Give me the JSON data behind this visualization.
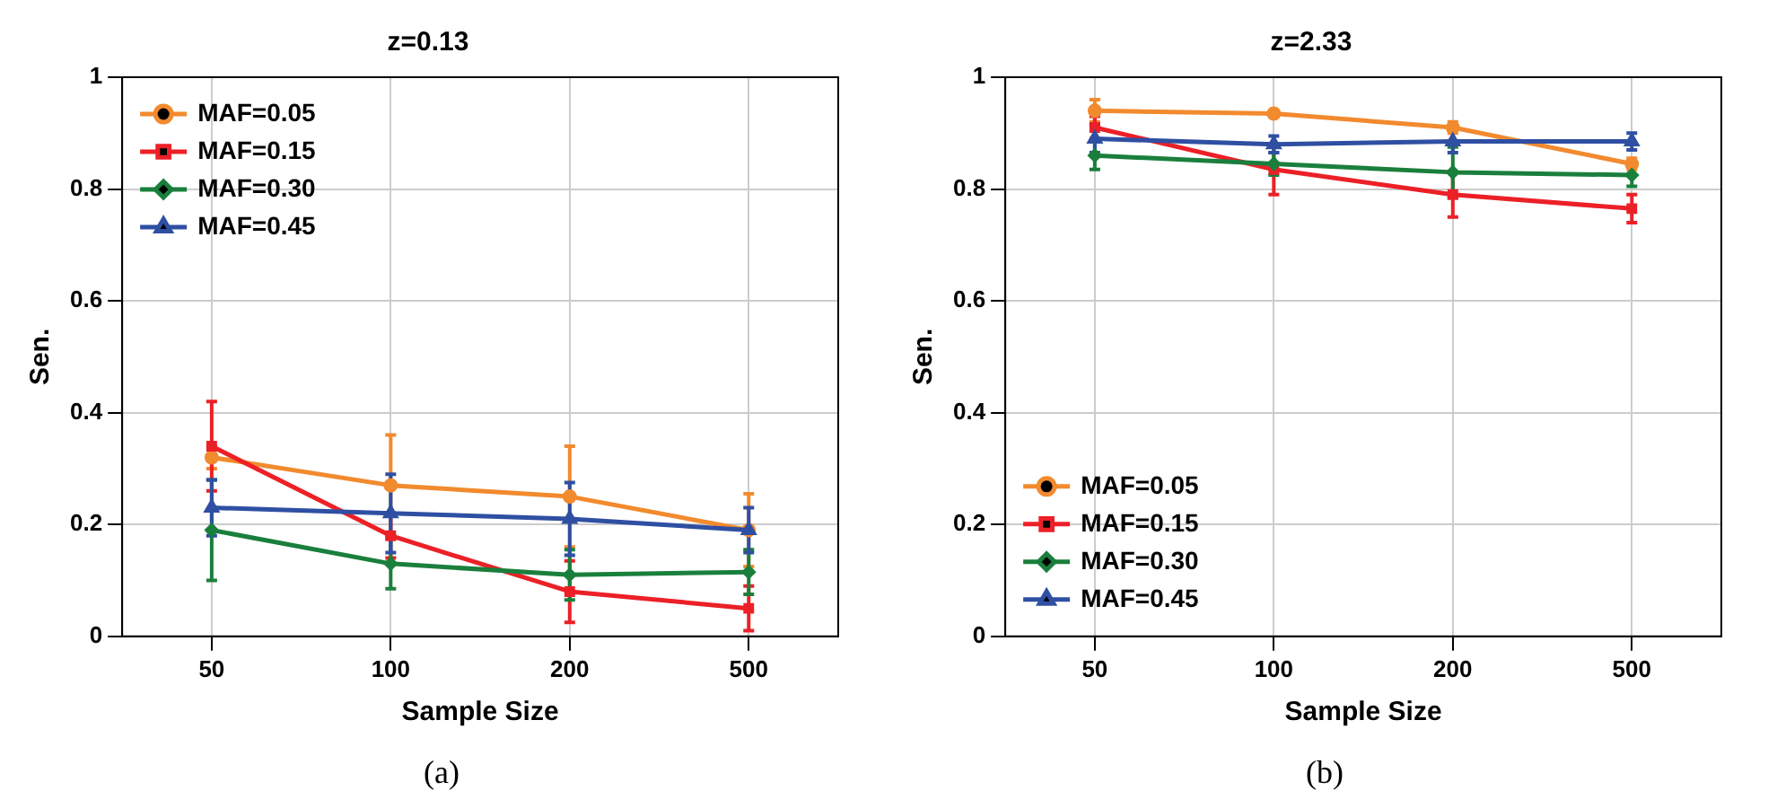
{
  "chart_data": [
    {
      "type": "line",
      "title": "z=0.13",
      "xlabel": "Sample Size",
      "ylabel": "Sen.",
      "categories": [
        "50",
        "100",
        "200",
        "500"
      ],
      "ylim": [
        0,
        1
      ],
      "yticks": [
        0,
        0.2,
        0.4,
        0.6,
        0.8,
        1
      ],
      "grid": true,
      "legend": "top left",
      "line_style": "solid",
      "annotations": [
        "(a)"
      ],
      "series": [
        {
          "name": "MAF=0.05",
          "color": "#f28a2e",
          "marker": "circle",
          "values": [
            0.32,
            0.27,
            0.25,
            0.19
          ],
          "errors": [
            0.02,
            0.09,
            0.09,
            0.065
          ]
        },
        {
          "name": "MAF=0.15",
          "color": "#ec2027",
          "marker": "square",
          "values": [
            0.34,
            0.18,
            0.08,
            0.05
          ],
          "errors": [
            0.08,
            0.04,
            0.055,
            0.04
          ]
        },
        {
          "name": "MAF=0.30",
          "color": "#1a7f3c",
          "marker": "diamond",
          "values": [
            0.19,
            0.13,
            0.11,
            0.115
          ],
          "errors": [
            0.09,
            0.045,
            0.045,
            0.04
          ]
        },
        {
          "name": "MAF=0.45",
          "color": "#2f4fa2",
          "marker": "triangle",
          "values": [
            0.23,
            0.22,
            0.21,
            0.19
          ],
          "errors": [
            0.05,
            0.07,
            0.065,
            0.04
          ]
        }
      ]
    },
    {
      "type": "line",
      "title": "z=2.33",
      "xlabel": "Sample Size",
      "ylabel": "Sen.",
      "categories": [
        "50",
        "100",
        "200",
        "500"
      ],
      "ylim": [
        0,
        1
      ],
      "yticks": [
        0,
        0.2,
        0.4,
        0.6,
        0.8,
        1
      ],
      "grid": true,
      "legend": "bottom left",
      "line_style": "solid",
      "annotations": [
        "(b)"
      ],
      "series": [
        {
          "name": "MAF=0.05",
          "color": "#f28a2e",
          "marker": "circle",
          "values": [
            0.94,
            0.935,
            0.91,
            0.845
          ],
          "errors": [
            0.02,
            0.005,
            0.01,
            0.01
          ]
        },
        {
          "name": "MAF=0.15",
          "color": "#ec2027",
          "marker": "square",
          "values": [
            0.91,
            0.835,
            0.79,
            0.765
          ],
          "errors": [
            0.02,
            0.045,
            0.04,
            0.025
          ]
        },
        {
          "name": "MAF=0.30",
          "color": "#1a7f3c",
          "marker": "diamond",
          "values": [
            0.86,
            0.845,
            0.83,
            0.825
          ],
          "errors": [
            0.025,
            0.02,
            0.045,
            0.02
          ]
        },
        {
          "name": "MAF=0.45",
          "color": "#2f4fa2",
          "marker": "triangle",
          "values": [
            0.89,
            0.88,
            0.885,
            0.885
          ],
          "errors": [
            0.025,
            0.015,
            0.02,
            0.015
          ]
        }
      ]
    }
  ]
}
